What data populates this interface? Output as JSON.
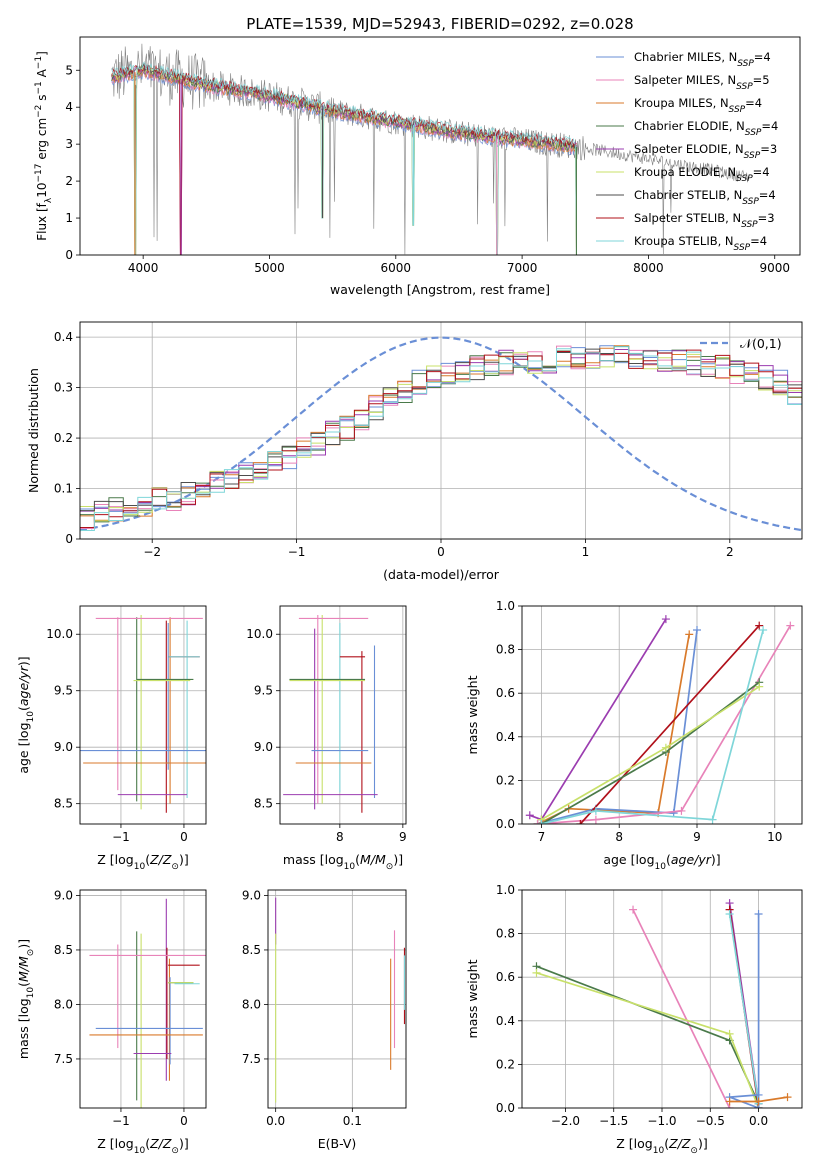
{
  "figure_title": "PLATE=1539, MJD=52943, FIBERID=0292, z=0.028",
  "legend_entries": [
    {
      "name": "Chabrier MILES",
      "nssp": "4",
      "color": "#6a8fd6"
    },
    {
      "name": "Salpeter MILES",
      "nssp": "5",
      "color": "#e883b9"
    },
    {
      "name": "Kroupa MILES",
      "nssp": "4",
      "color": "#d97a2b"
    },
    {
      "name": "Chabrier ELODIE",
      "nssp": "4",
      "color": "#4a7a4a"
    },
    {
      "name": "Salpeter ELODIE",
      "nssp": "3",
      "color": "#9b3db0"
    },
    {
      "name": "Kroupa ELODIE",
      "nssp": "4",
      "color": "#c8e06a"
    },
    {
      "name": "Chabrier STELIB",
      "nssp": "4",
      "color": "#4d4d4d"
    },
    {
      "name": "Salpeter STELIB",
      "nssp": "3",
      "color": "#b0101a"
    },
    {
      "name": "Kroupa STELIB",
      "nssp": "4",
      "color": "#7fd6d9"
    }
  ],
  "chart_data": [
    {
      "id": "spectrum",
      "type": "line",
      "xlabel": "wavelength [Angstrom, rest frame]",
      "ylabel": "Flux [f_λ10^-17 erg cm^-2 s^-1 A^-1]",
      "xlim": [
        3500,
        9200
      ],
      "ylim": [
        0,
        5.9
      ],
      "xticks": [
        4000,
        5000,
        6000,
        7000,
        8000,
        9000
      ],
      "yticks": [
        0,
        1,
        2,
        3,
        4,
        5
      ],
      "data_color": "#808080",
      "data_x_range": [
        3750,
        8800
      ],
      "continuum": [
        [
          3750,
          4.8
        ],
        [
          4000,
          5.0
        ],
        [
          4500,
          4.6
        ],
        [
          5000,
          4.3
        ],
        [
          5500,
          3.9
        ],
        [
          6000,
          3.6
        ],
        [
          6500,
          3.3
        ],
        [
          7000,
          3.1
        ],
        [
          7500,
          2.9
        ],
        [
          8000,
          2.6
        ],
        [
          8500,
          2.3
        ],
        [
          8800,
          2.1
        ]
      ],
      "model_x_range": [
        3750,
        7430
      ],
      "model_dips": [
        [
          3935,
          0.0
        ],
        [
          4300,
          0.0
        ],
        [
          5420,
          1.0
        ],
        [
          6140,
          0.8
        ],
        [
          6800,
          0.0
        ],
        [
          7430,
          0.0
        ]
      ],
      "grid": false,
      "legend": "top-right"
    },
    {
      "id": "residuals",
      "type": "step",
      "xlabel": "(data-model)/error",
      "ylabel": "Normed distribution",
      "xlim": [
        -2.5,
        2.5
      ],
      "ylim": [
        0,
        0.43
      ],
      "xticks": [
        -2,
        -1,
        0,
        1,
        2
      ],
      "yticks": [
        0,
        0.1,
        0.2,
        0.3,
        0.4
      ],
      "bin_edges_start": -2.5,
      "bin_width": 0.1,
      "base_profile": [
        0.04,
        0.05,
        0.06,
        0.07,
        0.07,
        0.08,
        0.08,
        0.09,
        0.1,
        0.11,
        0.12,
        0.13,
        0.14,
        0.15,
        0.16,
        0.18,
        0.19,
        0.21,
        0.22,
        0.24,
        0.26,
        0.28,
        0.29,
        0.31,
        0.32,
        0.33,
        0.33,
        0.34,
        0.34,
        0.35,
        0.35,
        0.35,
        0.35,
        0.36,
        0.36,
        0.36,
        0.36,
        0.36,
        0.36,
        0.35,
        0.35,
        0.35,
        0.35,
        0.34,
        0.34,
        0.33,
        0.33,
        0.32,
        0.31,
        0.29,
        0.28,
        0.26,
        0.24,
        0.22,
        0.21,
        0.19,
        0.18,
        0.16,
        0.15,
        0.14,
        0.13,
        0.12,
        0.11,
        0.1,
        0.09,
        0.08,
        0.08,
        0.07,
        0.07,
        0.06,
        0.06,
        0.05,
        0.05,
        0.05,
        0.05,
        0.04,
        0.04,
        0.04,
        0.04,
        0.04
      ],
      "gaussian_label": "𝒩(0,1)",
      "gaussian_color": "#6a8fd6",
      "grid": true,
      "legend": "top-right"
    },
    {
      "id": "age_vs_Z",
      "type": "errorbar",
      "xlabel": "Z [log10(Z/Z⊙)]",
      "ylabel": "age  [log10(age/yr)]",
      "xlim": [
        -1.65,
        0.35
      ],
      "ylim": [
        8.32,
        10.25
      ],
      "xticks": [
        -1,
        0
      ],
      "yticks": [
        8.5,
        9.0,
        9.5,
        10.0
      ],
      "points": [
        {
          "color": "#6a8fd6",
          "x": -0.4,
          "xerr": 1.25,
          "y": 8.97,
          "yerr": 0.1
        },
        {
          "color": "#d97a2b",
          "x": -0.6,
          "xerr": 1.0,
          "y": 8.86,
          "yerr": 0.1
        },
        {
          "color": "#9b3db0",
          "x": -0.5,
          "xerr": 0.55,
          "y": 8.58,
          "yerr": 0.05
        },
        {
          "color": "#e883b9",
          "x": -0.55,
          "xerr": 0.85,
          "y": 10.14,
          "yerr": 0.05
        },
        {
          "color": "#4a7a4a",
          "x": -0.3,
          "xerr": 0.45,
          "y": 9.6,
          "yerr": 0.05
        },
        {
          "color": "#c8e06a",
          "x": -0.35,
          "xerr": 0.45,
          "y": 9.59,
          "yerr": 0.05
        },
        {
          "color": "#b0101a",
          "x": 0.0,
          "xerr": 0.25,
          "y": 9.8,
          "yerr": 0.05
        },
        {
          "color": "#7fd6d9",
          "x": 0.0,
          "xerr": 0.25,
          "y": 9.8,
          "yerr": 0.05
        }
      ],
      "vlines": [
        {
          "color": "#e883b9",
          "x": -1.05,
          "y0": 8.62,
          "y1": 10.15
        },
        {
          "color": "#4a7a4a",
          "x": -0.75,
          "y0": 8.52,
          "y1": 10.15
        },
        {
          "color": "#c8e06a",
          "x": -0.68,
          "y0": 8.45,
          "y1": 10.17
        },
        {
          "color": "#b0101a",
          "x": -0.28,
          "y0": 8.42,
          "y1": 10.12
        },
        {
          "color": "#d97a2b",
          "x": -0.22,
          "y0": 8.5,
          "y1": 10.15
        },
        {
          "color": "#6a8fd6",
          "x": -0.25,
          "y0": 8.8,
          "y1": 10.1
        },
        {
          "color": "#7fd6d9",
          "x": 0.05,
          "y0": 8.55,
          "y1": 10.12
        }
      ],
      "grid": true
    },
    {
      "id": "age_vs_mass",
      "type": "errorbar",
      "xlabel": "mass [log10(M/M⊙)]",
      "ylabel": "",
      "xlim": [
        7.05,
        9.05
      ],
      "ylim": [
        8.32,
        10.25
      ],
      "xticks": [
        8,
        9
      ],
      "yticks": [
        8.5,
        9.0,
        9.5,
        10.0
      ],
      "points": [
        {
          "color": "#6a8fd6",
          "x": 8.0,
          "xerr": 0.45,
          "y": 8.97,
          "yerr": 0.1
        },
        {
          "color": "#d97a2b",
          "x": 7.9,
          "xerr": 0.6,
          "y": 8.86,
          "yerr": 0.1
        },
        {
          "color": "#9b3db0",
          "x": 7.85,
          "xerr": 0.75,
          "y": 8.58,
          "yerr": 0.05
        },
        {
          "color": "#e883b9",
          "x": 7.9,
          "xerr": 0.55,
          "y": 10.14,
          "yerr": 0.05
        },
        {
          "color": "#4a7a4a",
          "x": 7.8,
          "xerr": 0.6,
          "y": 9.6,
          "yerr": 0.05
        },
        {
          "color": "#c8e06a",
          "x": 7.8,
          "xerr": 0.6,
          "y": 9.59,
          "yerr": 0.05
        },
        {
          "color": "#b0101a",
          "x": 8.2,
          "xerr": 0.2,
          "y": 9.8,
          "yerr": 0.05
        }
      ],
      "vlines": [
        {
          "color": "#9b3db0",
          "x": 7.6,
          "y0": 8.45,
          "y1": 10.05
        },
        {
          "color": "#e883b9",
          "x": 7.65,
          "y0": 8.5,
          "y1": 10.17
        },
        {
          "color": "#c8e06a",
          "x": 7.72,
          "y0": 8.5,
          "y1": 10.17
        },
        {
          "color": "#7fd6d9",
          "x": 8.0,
          "y0": 8.6,
          "y1": 10.1
        },
        {
          "color": "#b0101a",
          "x": 8.35,
          "y0": 8.42,
          "y1": 9.85
        },
        {
          "color": "#6a8fd6",
          "x": 8.55,
          "y0": 8.55,
          "y1": 9.9
        }
      ],
      "grid": true
    },
    {
      "id": "weight_vs_age",
      "type": "line",
      "xlabel": "age  [log10(age/yr)]",
      "ylabel": "mass weight",
      "xlim": [
        6.75,
        10.35
      ],
      "ylim": [
        0,
        1.0
      ],
      "xticks": [
        7,
        8,
        9,
        10
      ],
      "yticks": [
        0,
        0.2,
        0.4,
        0.6,
        0.8,
        1.0
      ],
      "series": [
        {
          "color": "#9b3db0",
          "points": [
            [
              6.85,
              0.04
            ],
            [
              7.0,
              0.02
            ],
            [
              8.6,
              0.94
            ]
          ]
        },
        {
          "color": "#d97a2b",
          "points": [
            [
              6.95,
              0.0
            ],
            [
              7.35,
              0.07
            ],
            [
              8.5,
              0.05
            ],
            [
              8.9,
              0.87
            ]
          ]
        },
        {
          "color": "#6a8fd6",
          "points": [
            [
              6.95,
              0.0
            ],
            [
              7.7,
              0.07
            ],
            [
              8.7,
              0.05
            ],
            [
              9.0,
              0.89
            ]
          ]
        },
        {
          "color": "#e883b9",
          "points": [
            [
              6.95,
              0.0
            ],
            [
              7.7,
              0.02
            ],
            [
              8.8,
              0.06
            ],
            [
              10.2,
              0.91
            ]
          ]
        },
        {
          "color": "#b0101a",
          "points": [
            [
              7.5,
              0.0
            ],
            [
              9.8,
              0.91
            ]
          ]
        },
        {
          "color": "#4a7a4a",
          "points": [
            [
              7.0,
              0.0
            ],
            [
              8.6,
              0.33
            ],
            [
              9.8,
              0.65
            ]
          ]
        },
        {
          "color": "#c8e06a",
          "points": [
            [
              7.0,
              0.02
            ],
            [
              8.6,
              0.35
            ],
            [
              9.8,
              0.63
            ]
          ]
        },
        {
          "color": "#7fd6d9",
          "points": [
            [
              7.0,
              0.0
            ],
            [
              7.7,
              0.06
            ],
            [
              9.2,
              0.02
            ],
            [
              9.85,
              0.89
            ]
          ]
        }
      ],
      "grid": true
    },
    {
      "id": "mass_vs_Z",
      "type": "errorbar",
      "xlabel": "Z [log10(Z/Z⊙)]",
      "ylabel": "mass [log10(M/M⊙)]",
      "xlim": [
        -1.65,
        0.35
      ],
      "ylim": [
        7.05,
        9.05
      ],
      "xticks": [
        -1,
        0
      ],
      "yticks": [
        7.5,
        8.0,
        8.5,
        9.0
      ],
      "points": [
        {
          "color": "#6a8fd6",
          "x": -0.55,
          "xerr": 0.85,
          "y": 7.78,
          "yerr": 0.05
        },
        {
          "color": "#d97a2b",
          "x": -0.6,
          "xerr": 0.9,
          "y": 7.72,
          "yerr": 0.05
        },
        {
          "color": "#9b3db0",
          "x": -0.5,
          "xerr": 0.3,
          "y": 7.55,
          "yerr": 0.05
        },
        {
          "color": "#e883b9",
          "x": -0.55,
          "xerr": 0.95,
          "y": 8.45,
          "yerr": 0.05
        },
        {
          "color": "#4a7a4a",
          "x": -0.05,
          "xerr": 0.2,
          "y": 8.2,
          "yerr": 0.05
        },
        {
          "color": "#c8e06a",
          "x": -0.05,
          "xerr": 0.2,
          "y": 8.2,
          "yerr": 0.05
        },
        {
          "color": "#b0101a",
          "x": 0.0,
          "xerr": 0.25,
          "y": 8.36,
          "yerr": 0.05
        },
        {
          "color": "#7fd6d9",
          "x": 0.05,
          "xerr": 0.2,
          "y": 8.19,
          "yerr": 0.05
        }
      ],
      "vlines": [
        {
          "color": "#e883b9",
          "x": -1.05,
          "y0": 7.6,
          "y1": 8.55
        },
        {
          "color": "#4a7a4a",
          "x": -0.75,
          "y0": 7.12,
          "y1": 8.67
        },
        {
          "color": "#c8e06a",
          "x": -0.68,
          "y0": 7.05,
          "y1": 8.65
        },
        {
          "color": "#9b3db0",
          "x": -0.28,
          "y0": 7.3,
          "y1": 8.97
        },
        {
          "color": "#b0101a",
          "x": -0.27,
          "y0": 7.5,
          "y1": 8.52
        },
        {
          "color": "#d97a2b",
          "x": -0.23,
          "y0": 7.3,
          "y1": 8.42
        },
        {
          "color": "#6a8fd6",
          "x": -0.22,
          "y0": 7.45,
          "y1": 8.25
        }
      ],
      "grid": true
    },
    {
      "id": "mass_vs_EBV",
      "type": "errorbar",
      "xlabel": "E(B-V)",
      "ylabel": "",
      "xlim": [
        -0.01,
        0.17
      ],
      "ylim": [
        7.05,
        9.05
      ],
      "xticks": [
        0.0,
        0.1
      ],
      "yticks": [
        7.5,
        8.0,
        8.5,
        9.0
      ],
      "vlines": [
        {
          "color": "#9b3db0",
          "x": 0.0,
          "y0": 8.55,
          "y1": 8.98
        },
        {
          "color": "#c8e06a",
          "x": 0.0,
          "y0": 7.1,
          "y1": 8.65
        },
        {
          "color": "#d97a2b",
          "x": 0.15,
          "y0": 7.4,
          "y1": 8.42
        },
        {
          "color": "#e883b9",
          "x": 0.155,
          "y0": 7.6,
          "y1": 8.68
        },
        {
          "color": "#b0101a",
          "x": 0.168,
          "y0": 7.82,
          "y1": 8.52
        },
        {
          "color": "#7fd6d9",
          "x": 0.168,
          "y0": 7.95,
          "y1": 8.45
        }
      ],
      "points": [],
      "grid": true
    },
    {
      "id": "weight_vs_Z",
      "type": "line",
      "xlabel": "Z [log10(Z/Z⊙)]",
      "ylabel": "mass weight",
      "xlim": [
        -2.45,
        0.45
      ],
      "ylim": [
        0,
        1.0
      ],
      "xticks": [
        -2.0,
        -1.5,
        -1.0,
        -0.5,
        0.0
      ],
      "yticks": [
        0,
        0.2,
        0.4,
        0.6,
        0.8,
        1.0
      ],
      "series": [
        {
          "color": "#e883b9",
          "points": [
            [
              -1.3,
              0.91
            ],
            [
              -0.3,
              0.0
            ]
          ]
        },
        {
          "color": "#4a7a4a",
          "points": [
            [
              -2.3,
              0.65
            ],
            [
              -0.3,
              0.31
            ],
            [
              0.0,
              0.02
            ]
          ]
        },
        {
          "color": "#c8e06a",
          "points": [
            [
              -2.3,
              0.62
            ],
            [
              -0.3,
              0.34
            ],
            [
              0.0,
              0.0
            ]
          ]
        },
        {
          "color": "#9b3db0",
          "points": [
            [
              -0.3,
              0.94
            ],
            [
              0.0,
              0.02
            ]
          ]
        },
        {
          "color": "#b0101a",
          "points": [
            [
              -0.3,
              0.91
            ],
            [
              0.0,
              0.0
            ]
          ]
        },
        {
          "color": "#7fd6d9",
          "points": [
            [
              -0.3,
              0.89
            ],
            [
              0.0,
              0.02
            ]
          ]
        },
        {
          "color": "#6a8fd6",
          "points": [
            [
              0.0,
              0.89
            ],
            [
              0.0,
              0.0
            ],
            [
              -0.3,
              0.05
            ],
            [
              0.0,
              0.06
            ]
          ]
        },
        {
          "color": "#d97a2b",
          "points": [
            [
              -0.3,
              0.03
            ],
            [
              0.0,
              0.03
            ],
            [
              0.3,
              0.05
            ]
          ]
        }
      ],
      "grid": true
    }
  ]
}
